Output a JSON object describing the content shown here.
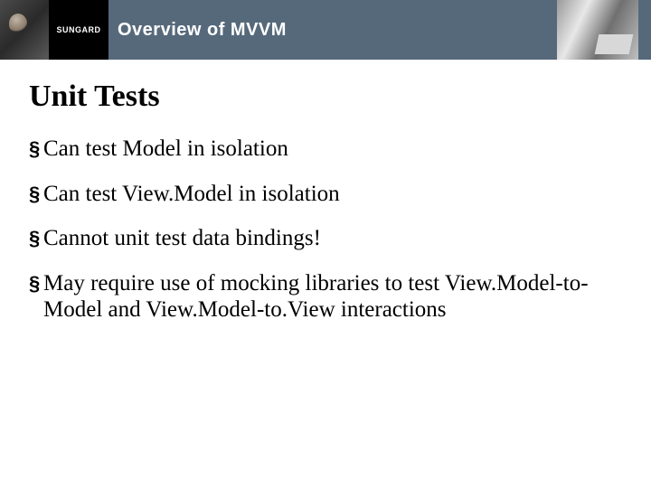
{
  "header": {
    "logo_text": "SUNGARD",
    "title": "Overview of MVVM",
    "title_bg": "#56697b",
    "logo_bg": "#000000",
    "title_color": "#ffffff",
    "title_fontsize": 20
  },
  "slide": {
    "title": "Unit Tests",
    "title_fontsize": 34,
    "bullet_marker": "§",
    "bullet_fontsize": 25,
    "bullets": [
      "Can test Model in isolation",
      "Can test View.Model in isolation",
      "Cannot unit test data bindings!",
      "May require use of mocking libraries to test View.Model-to-Model and View.Model-to.View interactions"
    ]
  },
  "colors": {
    "background": "#ffffff",
    "text": "#000000"
  }
}
